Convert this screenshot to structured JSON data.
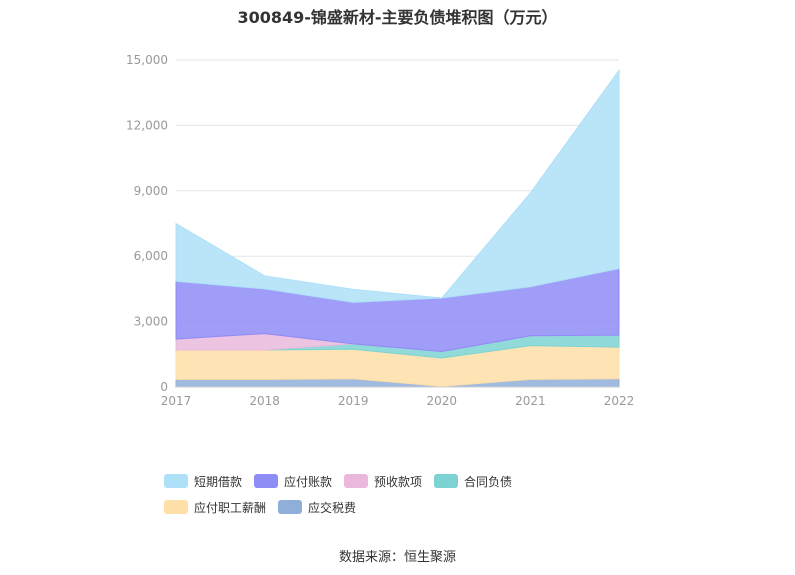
{
  "title": "300849-锦盛新材-主要负债堆积图（万元）",
  "source": "数据来源：恒生聚源",
  "chart_data": {
    "type": "area",
    "stacked": true,
    "x": [
      "2017",
      "2018",
      "2019",
      "2020",
      "2021",
      "2022"
    ],
    "ylim": [
      0,
      15000
    ],
    "yticks": [
      0,
      3000,
      6000,
      9000,
      12000,
      15000
    ],
    "ytick_labels": [
      "0",
      "3,000",
      "6,000",
      "9,000",
      "12,000",
      "15,000"
    ],
    "grid": true,
    "legend_position": "bottom",
    "series": [
      {
        "name": "应交税费",
        "color": "#8fafd9",
        "values": [
          350,
          350,
          380,
          30,
          350,
          380
        ]
      },
      {
        "name": "应付职工薪酬",
        "color": "#fedfa8",
        "values": [
          1350,
          1350,
          1350,
          1300,
          1550,
          1450
        ]
      },
      {
        "name": "合同负债",
        "color": "#7dd3d3",
        "values": [
          0,
          0,
          250,
          300,
          450,
          550
        ]
      },
      {
        "name": "预收款项",
        "color": "#eab8dd",
        "values": [
          500,
          750,
          0,
          0,
          0,
          0
        ]
      },
      {
        "name": "应付账款",
        "color": "#8e8cf7",
        "values": [
          2650,
          2050,
          1900,
          2450,
          2250,
          3050
        ]
      },
      {
        "name": "短期借款",
        "color": "#aee0f7",
        "values": [
          2650,
          600,
          600,
          0,
          4300,
          9100
        ]
      }
    ],
    "legend_order": [
      "短期借款",
      "应付账款",
      "预收款项",
      "合同负债",
      "应付职工薪酬",
      "应交税费"
    ]
  }
}
